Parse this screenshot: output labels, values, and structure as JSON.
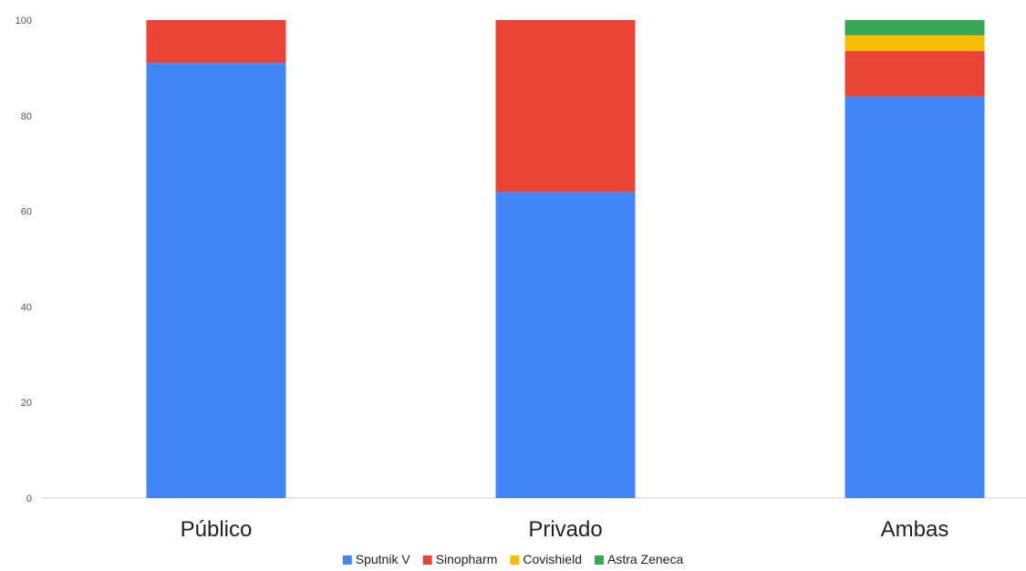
{
  "chart_data": {
    "type": "bar",
    "stacked": true,
    "categories": [
      "Público",
      "Privado",
      "Ambas"
    ],
    "series": [
      {
        "name": "Sputnik V",
        "color": "#4285f4",
        "values": [
          91,
          64,
          84
        ]
      },
      {
        "name": "Sinopharm",
        "color": "#ea4335",
        "values": [
          9,
          36,
          9.5
        ]
      },
      {
        "name": "Covishield",
        "color": "#fbbc04",
        "values": [
          0,
          0,
          3.3
        ]
      },
      {
        "name": "Astra Zeneca",
        "color": "#34a853",
        "values": [
          0,
          0,
          3.2
        ]
      }
    ],
    "yticks": [
      "0",
      "20",
      "40",
      "60",
      "80",
      "100"
    ],
    "ylim": [
      0,
      100
    ],
    "grid": false,
    "legend_position": "bottom",
    "title": "",
    "xlabel": "",
    "ylabel": ""
  }
}
